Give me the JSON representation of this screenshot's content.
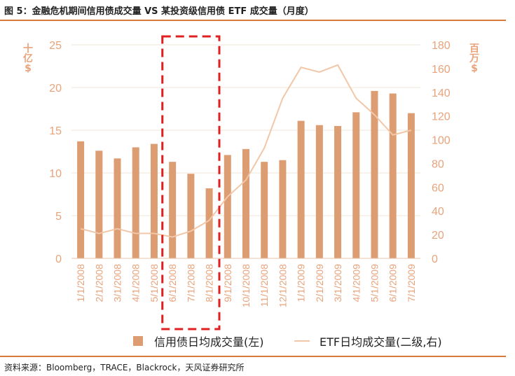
{
  "header": {
    "title": "图 5：金融危机期间信用债成交量 VS 某投资级信用债 ETF 成交量（月度）"
  },
  "footer": {
    "source": "资料来源：Bloomberg，TRACE，Blackrock，天风证券研究所"
  },
  "colors": {
    "bar": "#dc9d72",
    "line": "#f2c7a8",
    "axis_text": "#e8a37b",
    "highlight": "#e02020",
    "rule": "#d77b3a"
  },
  "chart_data": {
    "type": "bar",
    "categories": [
      "1/1/2008",
      "2/1/2008",
      "3/1/2008",
      "4/1/2008",
      "5/1/2008",
      "6/1/2008",
      "7/1/2008",
      "8/1/2008",
      "9/1/2008",
      "10/1/2008",
      "11/1/2008",
      "12/1/2008",
      "1/1/2009",
      "2/1/2009",
      "3/1/2009",
      "4/1/2009",
      "5/1/2009",
      "6/1/2009",
      "7/1/2009"
    ],
    "series": [
      {
        "name": "信用债日均成交量(左)",
        "type": "bar",
        "axis": "left",
        "values": [
          13.7,
          12.6,
          11.7,
          13.0,
          13.4,
          11.3,
          9.9,
          8.2,
          12.1,
          12.8,
          11.3,
          11.5,
          16.1,
          15.6,
          15.5,
          17.1,
          19.6,
          19.3,
          17.0
        ]
      },
      {
        "name": "ETF日均成交量(二级,右)",
        "type": "line",
        "axis": "right",
        "values": [
          25,
          21,
          25,
          21,
          21,
          18,
          23,
          32,
          52,
          66,
          93,
          135,
          161,
          157,
          163,
          135,
          121,
          104,
          108
        ]
      }
    ],
    "left_axis": {
      "unit_label": "十亿$",
      "ylim": [
        0,
        25
      ],
      "ticks": [
        "0",
        "5",
        "10",
        "15",
        "20",
        "25"
      ]
    },
    "right_axis": {
      "unit_label": "百万$",
      "ylim": [
        0,
        180
      ],
      "ticks": [
        "0",
        "20",
        "40",
        "60",
        "80",
        "100",
        "120",
        "140",
        "160",
        "180"
      ]
    },
    "highlight": {
      "from": "6/1/2008",
      "to": "8/1/2008",
      "style": "dashed-box"
    },
    "legend": {
      "position": "bottom"
    },
    "grid": true
  }
}
